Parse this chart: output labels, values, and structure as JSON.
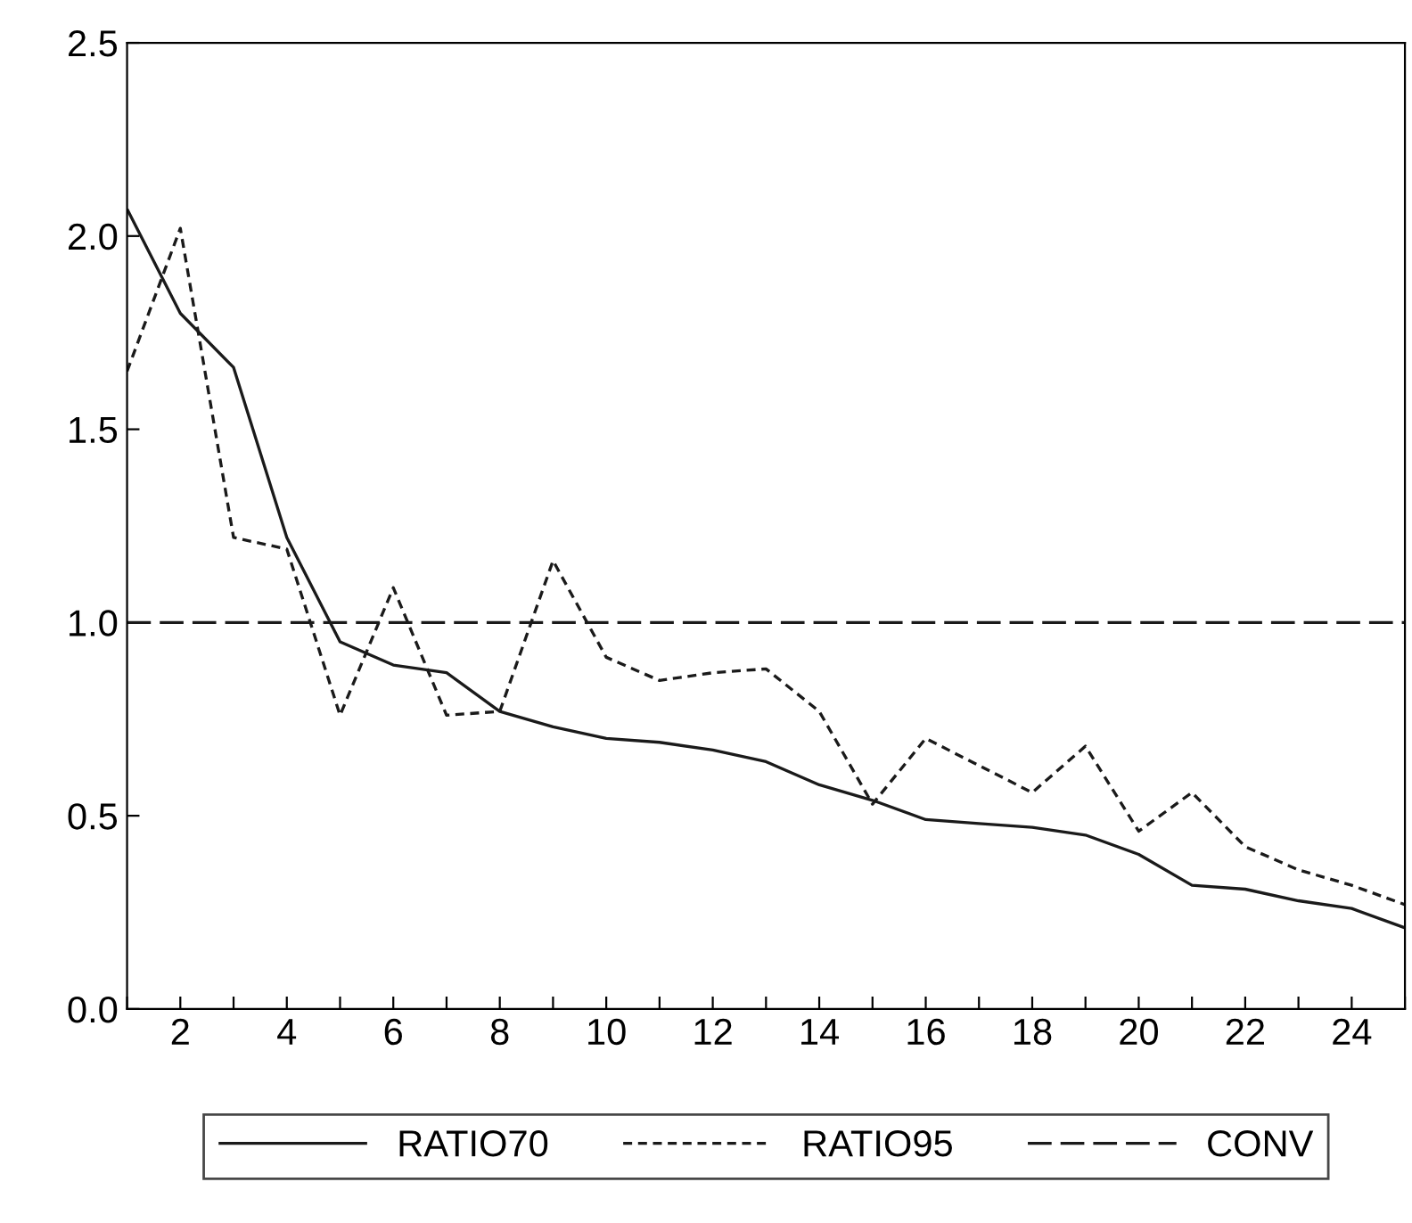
{
  "chart_data": {
    "type": "line",
    "x": [
      1,
      2,
      3,
      4,
      5,
      6,
      7,
      8,
      9,
      10,
      11,
      12,
      13,
      14,
      15,
      16,
      17,
      18,
      19,
      20,
      21,
      22,
      23,
      24,
      25
    ],
    "series": [
      {
        "name": "RATIO70",
        "color": "#1a1a1a",
        "line_style": "solid",
        "values": [
          2.07,
          1.8,
          1.66,
          1.22,
          0.95,
          0.89,
          0.87,
          0.77,
          0.73,
          0.7,
          0.69,
          0.67,
          0.64,
          0.58,
          0.54,
          0.49,
          0.48,
          0.47,
          0.45,
          0.4,
          0.32,
          0.31,
          0.28,
          0.26,
          0.21
        ]
      },
      {
        "name": "RATIO95",
        "color": "#1a1a1a",
        "line_style": "dotted",
        "values": [
          1.65,
          2.02,
          1.22,
          1.19,
          0.76,
          1.09,
          0.76,
          0.77,
          1.16,
          0.91,
          0.85,
          0.87,
          0.88,
          0.77,
          0.53,
          0.7,
          0.63,
          0.56,
          0.68,
          0.46,
          0.56,
          0.42,
          0.36,
          0.32,
          0.27
        ]
      },
      {
        "name": "CONV",
        "color": "#1a1a1a",
        "line_style": "dashed",
        "values": [
          1,
          1,
          1,
          1,
          1,
          1,
          1,
          1,
          1,
          1,
          1,
          1,
          1,
          1,
          1,
          1,
          1,
          1,
          1,
          1,
          1,
          1,
          1,
          1,
          1
        ]
      }
    ],
    "xlim": [
      1,
      25
    ],
    "ylim": [
      0,
      2.5
    ],
    "xticks": [
      {
        "value": 1,
        "label": null
      },
      2,
      {
        "value": 3,
        "label": null
      },
      4,
      {
        "value": 5,
        "label": null
      },
      6,
      {
        "value": 7,
        "label": null
      },
      8,
      {
        "value": 9,
        "label": null
      },
      10,
      {
        "value": 11,
        "label": null
      },
      12,
      {
        "value": 13,
        "label": null
      },
      14,
      {
        "value": 15,
        "label": null
      },
      16,
      {
        "value": 17,
        "label": null
      },
      18,
      {
        "value": 19,
        "label": null
      },
      20,
      {
        "value": 21,
        "label": null
      },
      22,
      {
        "value": 23,
        "label": null
      },
      24,
      {
        "value": 25,
        "label": null
      }
    ],
    "yticks": [
      {
        "value": 0,
        "label": "0.0"
      },
      0.5,
      {
        "value": 1,
        "label": "1.0"
      },
      1.5,
      {
        "value": 2,
        "label": "2.0"
      },
      2.5
    ],
    "grid": false,
    "legend": "bottom",
    "marker": "none"
  }
}
